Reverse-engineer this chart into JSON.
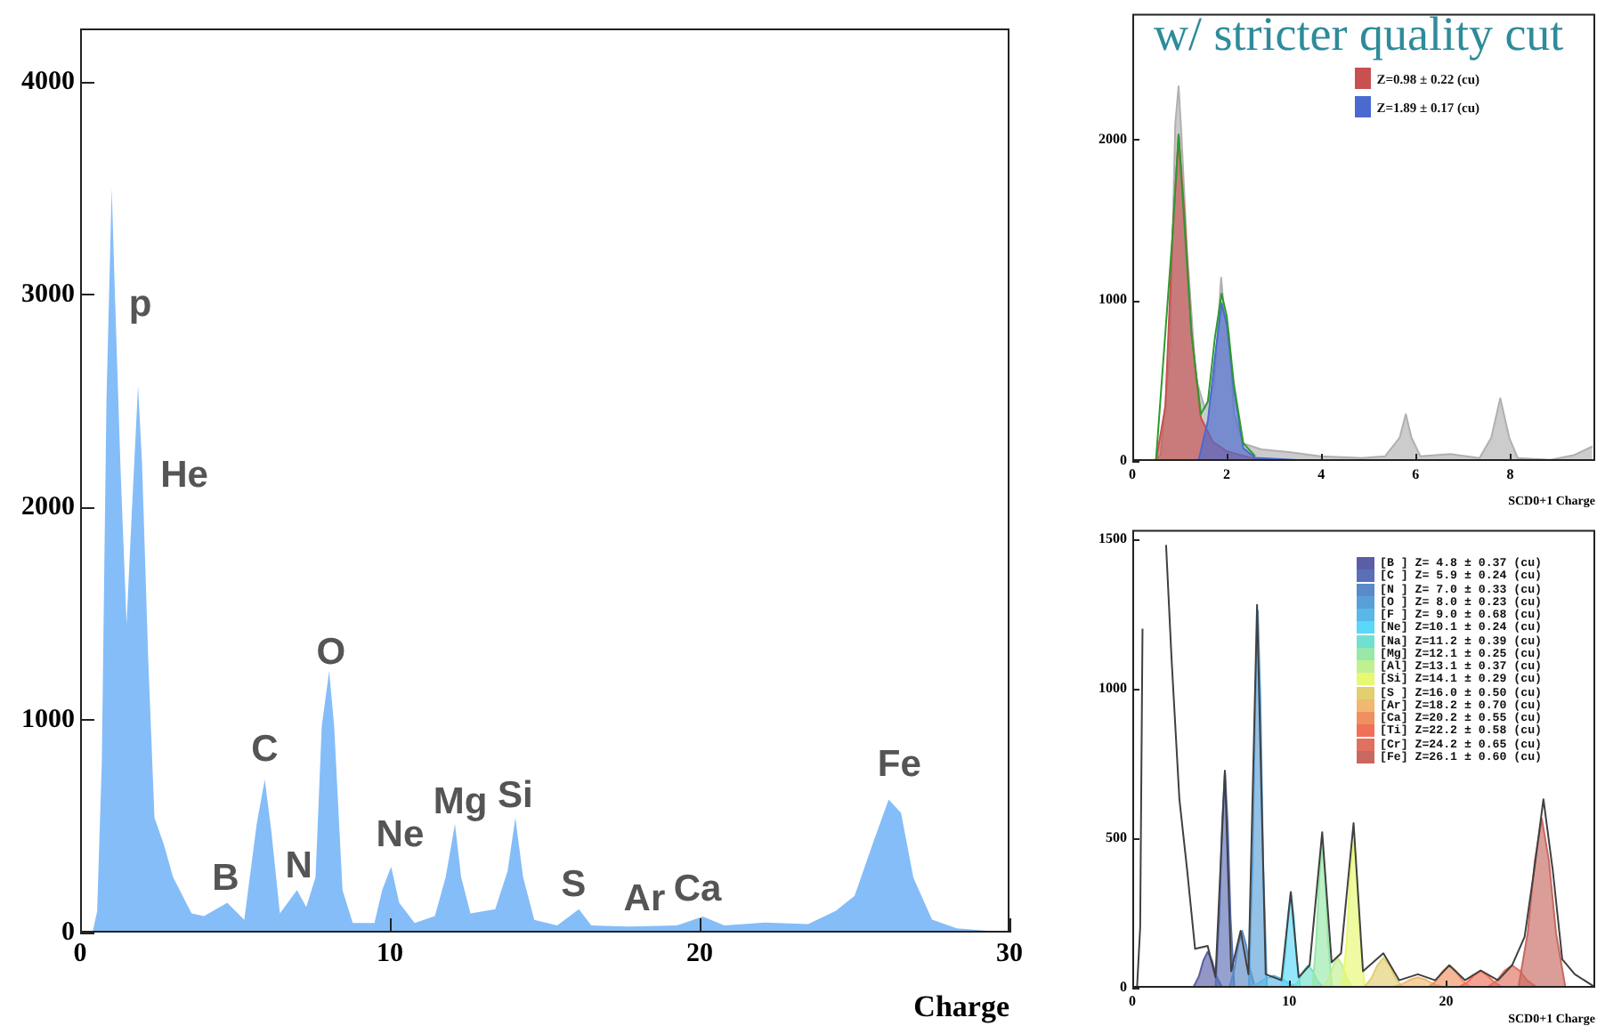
{
  "chart_data": [
    {
      "type": "area",
      "xlabel": "Charge",
      "xlim": [
        0,
        30
      ],
      "ylim": [
        0,
        4250
      ],
      "xticks": [
        0,
        10,
        20,
        30
      ],
      "yticks": [
        0,
        1000,
        2000,
        3000,
        4000
      ],
      "grid": false,
      "legend": false,
      "series": [
        {
          "color": "#85bdf8",
          "x": [
            0,
            0.4,
            0.55,
            0.7,
            0.85,
            1.02,
            1.13,
            1.3,
            1.5,
            1.66,
            1.87,
            2.0,
            2.2,
            2.4,
            2.7,
            3.0,
            3.6,
            4.0,
            4.75,
            5.3,
            5.7,
            5.96,
            6.17,
            6.45,
            7.0,
            7.3,
            7.6,
            7.8,
            8.04,
            8.2,
            8.47,
            8.8,
            9.5,
            9.75,
            10.04,
            10.3,
            10.8,
            11.45,
            11.8,
            12.1,
            12.3,
            12.6,
            13.4,
            13.8,
            14.05,
            14.3,
            14.66,
            15.4,
            16.1,
            16.5,
            17.7,
            19.25,
            20.1,
            20.8,
            22.1,
            23.5,
            24.4,
            25.0,
            25.6,
            26.1,
            26.5,
            26.9,
            27.5,
            28.3,
            30
          ],
          "values": [
            0,
            0,
            100,
            800,
            2500,
            3500,
            2970,
            2200,
            1450,
            1950,
            2570,
            2200,
            1280,
            540,
            415,
            260,
            90,
            77,
            140,
            60,
            510,
            720,
            480,
            90,
            200,
            120,
            260,
            970,
            1230,
            970,
            200,
            45,
            45,
            200,
            310,
            140,
            45,
            77,
            260,
            510,
            260,
            90,
            110,
            290,
            540,
            260,
            60,
            33,
            110,
            33,
            28,
            33,
            75,
            33,
            47,
            40,
            103,
            173,
            424,
            625,
            563,
            257,
            61,
            20,
            0
          ]
        }
      ],
      "annotations": [
        {
          "text": "p",
          "x": 1.02,
          "y": 3500
        },
        {
          "text": "He",
          "x": 1.87,
          "y": 2570
        },
        {
          "text": "B",
          "x": 4.75,
          "y": 140
        },
        {
          "text": "C",
          "x": 5.96,
          "y": 720
        },
        {
          "text": "N",
          "x": 7.0,
          "y": 200
        },
        {
          "text": "O",
          "x": 8.04,
          "y": 1230
        },
        {
          "text": "Ne",
          "x": 10.04,
          "y": 310
        },
        {
          "text": "Mg",
          "x": 12.1,
          "y": 510
        },
        {
          "text": "Si",
          "x": 14.05,
          "y": 540
        },
        {
          "text": "S",
          "x": 16.1,
          "y": 110
        },
        {
          "text": "Ar",
          "x": 17.7,
          "y": 28
        },
        {
          "text": "Ca",
          "x": 20.1,
          "y": 75
        },
        {
          "text": "Fe",
          "x": 26.1,
          "y": 625
        }
      ]
    },
    {
      "type": "area",
      "title": "w/ stricter quality cut",
      "xlabel": "SCD0+1 Charge",
      "xlim": [
        0,
        9.8
      ],
      "ylim": [
        0,
        2780
      ],
      "xticks": [
        0,
        2,
        4,
        6,
        8
      ],
      "yticks": [
        0,
        1000,
        2000
      ],
      "grid": false,
      "legend": "top right",
      "series": [
        {
          "color": "#b0b0b0",
          "x": [
            0,
            0.48,
            0.6,
            0.79,
            0.91,
            0.98,
            1.04,
            1.16,
            1.35,
            1.54,
            1.73,
            1.88,
            1.94,
            2.04,
            2.16,
            2.35,
            2.73,
            3.35,
            3.98,
            4.85,
            5.35,
            5.66,
            5.79,
            5.91,
            6.1,
            6.73,
            7.35,
            7.6,
            7.79,
            7.98,
            8.16,
            8.85,
            9.35,
            9.74
          ],
          "values": [
            0,
            7,
            36,
            650,
            2100,
            2330,
            2025,
            1300,
            506,
            325,
            470,
            1140,
            940,
            800,
            290,
            108,
            72,
            54,
            29,
            18,
            29,
            145,
            290,
            145,
            29,
            43,
            18,
            145,
            390,
            145,
            18,
            7,
            36,
            90
          ]
        },
        {
          "name": "Z=0.98 ± 0.22 (cu)",
          "color": "#c85050",
          "x": [
            0.5,
            0.7,
            0.85,
            0.98,
            1.1,
            1.25,
            1.45,
            1.7,
            2.0,
            2.5,
            3.5
          ],
          "values": [
            0,
            340,
            1400,
            2030,
            1550,
            800,
            270,
            120,
            60,
            20,
            0
          ]
        },
        {
          "name": "Z=1.89 ± 0.17 (cu)",
          "color": "#4a6ad0",
          "x": [
            1.4,
            1.6,
            1.75,
            1.89,
            2.0,
            2.15,
            2.35,
            2.6,
            3.5,
            5.0
          ],
          "values": [
            0,
            250,
            650,
            980,
            850,
            450,
            80,
            20,
            5,
            0
          ]
        },
        {
          "type": "line",
          "color": "#2e9a2e",
          "x": [
            0.5,
            0.85,
            0.98,
            1.25,
            1.45,
            1.6,
            1.75,
            1.89,
            2.0,
            2.15,
            2.35,
            2.6
          ],
          "values": [
            0,
            1400,
            2030,
            800,
            290,
            370,
            770,
            1040,
            900,
            480,
            110,
            30
          ]
        }
      ]
    },
    {
      "type": "area",
      "xlabel": "SCD0+1 Charge",
      "xlim": [
        0,
        29.5
      ],
      "ylim": [
        0,
        1530
      ],
      "xticks": [
        0,
        10,
        20
      ],
      "yticks": [
        0,
        500,
        1000,
        1500
      ],
      "grid": false,
      "legend": "top right",
      "series": [
        {
          "name": "[B ] Z= 4.8 ± 0.37 (cu)",
          "color": "#5b5ea6",
          "x": [
            3.88,
            4.25,
            4.52,
            4.8,
            5.08,
            5.35,
            5.73
          ],
          "values": [
            0,
            39,
            90,
            120,
            90,
            39,
            0
          ]
        },
        {
          "name": "[C ] Z= 5.9 ± 0.24 (cu)",
          "color": "#5a6fb8",
          "x": [
            5.3,
            5.54,
            5.72,
            5.9,
            6.08,
            6.26,
            6.5
          ],
          "values": [
            0,
            235,
            545,
            725,
            545,
            235,
            0
          ]
        },
        {
          "name": "[N ] Z= 7.0 ± 0.33 (cu)",
          "color": "#5a8ac8",
          "x": [
            6.18,
            6.5,
            6.75,
            7.0,
            7.25,
            7.5,
            7.82
          ],
          "values": [
            0,
            62,
            143,
            190,
            143,
            62,
            0
          ]
        },
        {
          "name": "[O ] Z= 8.0 ± 0.23 (cu)",
          "color": "#5aa0d8",
          "x": [
            7.42,
            7.66,
            7.83,
            8.0,
            8.17,
            8.34,
            8.58
          ],
          "values": [
            0,
            410,
            945,
            1260,
            945,
            410,
            0
          ]
        },
        {
          "name": "[F ] Z= 9.0 ± 0.68 (cu)",
          "color": "#5ab8e8",
          "x": [
            7.3,
            7.98,
            8.49,
            9.0,
            9.51,
            10.02,
            10.7
          ],
          "values": [
            0,
            13,
            30,
            40,
            30,
            13,
            0
          ]
        },
        {
          "name": "[Ne] Z=10.1 ± 0.24 (cu)",
          "color": "#5ad8f8",
          "x": [
            9.5,
            9.74,
            9.92,
            10.1,
            10.28,
            10.46,
            10.7
          ],
          "values": [
            0,
            104,
            240,
            320,
            240,
            104,
            0
          ]
        },
        {
          "name": "[Na] Z=11.2 ± 0.39 (cu)",
          "color": "#70e0d0",
          "x": [
            10.22,
            10.62,
            10.91,
            11.2,
            11.49,
            11.78,
            12.18
          ],
          "values": [
            0,
            24,
            56,
            75,
            56,
            24,
            0
          ]
        },
        {
          "name": "[Mg] Z=12.1 ± 0.25 (cu)",
          "color": "#98e8a8",
          "x": [
            11.48,
            11.72,
            11.91,
            12.1,
            12.29,
            12.48,
            12.72
          ],
          "values": [
            0,
            156,
            360,
            480,
            360,
            156,
            0
          ]
        },
        {
          "name": "[Al] Z=13.1 ± 0.37 (cu)",
          "color": "#c0f090",
          "x": [
            12.18,
            12.55,
            12.82,
            13.1,
            13.38,
            13.65,
            14.02
          ],
          "values": [
            0,
            33,
            75,
            100,
            75,
            33,
            0
          ]
        },
        {
          "name": "[Si] Z=14.1 ± 0.29 (cu)",
          "color": "#e8f870",
          "x": [
            13.38,
            13.67,
            13.88,
            14.1,
            14.32,
            14.53,
            14.82
          ],
          "values": [
            0,
            159,
            368,
            490,
            368,
            159,
            0
          ]
        },
        {
          "name": "[S ] Z=16.0 ± 0.50 (cu)",
          "color": "#e0d070",
          "x": [
            14.75,
            15.25,
            15.62,
            16.0,
            16.38,
            16.75,
            17.25
          ],
          "values": [
            0,
            33,
            75,
            100,
            75,
            33,
            0
          ]
        },
        {
          "name": "[Ar] Z=18.2 ± 0.70 (cu)",
          "color": "#f0b870",
          "x": [
            16.45,
            17.15,
            17.67,
            18.2,
            18.73,
            19.25,
            19.95
          ],
          "values": [
            0,
            11,
            26,
            35,
            26,
            11,
            0
          ]
        },
        {
          "name": "[Ca] Z=20.2 ± 0.55 (cu)",
          "color": "#f09060",
          "x": [
            18.82,
            19.38,
            19.79,
            20.2,
            20.61,
            21.02,
            21.58
          ],
          "values": [
            0,
            24,
            56,
            75,
            56,
            24,
            0
          ]
        },
        {
          "name": "[Ti] Z=22.2 ± 0.58 (cu)",
          "color": "#f07058",
          "x": [
            20.75,
            21.33,
            21.77,
            22.2,
            22.63,
            23.07,
            23.65
          ],
          "values": [
            0,
            18,
            41,
            55,
            41,
            18,
            0
          ]
        },
        {
          "name": "[Cr] Z=24.2 ± 0.65 (cu)",
          "color": "#e07060",
          "x": [
            22.58,
            23.23,
            23.71,
            24.2,
            24.69,
            25.17,
            25.82
          ],
          "values": [
            0,
            24,
            56,
            75,
            56,
            24,
            0
          ]
        },
        {
          "name": "[Fe] Z=26.1 ± 0.60 (cu)",
          "color": "#c86860",
          "x": [
            24.6,
            25.2,
            25.65,
            26.1,
            26.55,
            27.0,
            27.6
          ],
          "values": [
            0,
            184,
            424,
            565,
            424,
            184,
            0
          ]
        },
        {
          "type": "line",
          "color": "#404040",
          "x": [
            0.3,
            0.5,
            0.65,
            0.75,
            2.15,
            2.5,
            3.0,
            3.5,
            4.0,
            4.8,
            5.3,
            5.9,
            6.3,
            6.9,
            7.4,
            7.95,
            8.5,
            9.5,
            10.1,
            10.6,
            11.3,
            12.1,
            12.7,
            13.3,
            14.1,
            14.7,
            16.0,
            17.0,
            18.2,
            19.3,
            20.2,
            21.2,
            22.2,
            23.3,
            24.2,
            25.0,
            25.6,
            26.2,
            26.8,
            27.4,
            28.2,
            29.4
          ],
          "values": [
            0,
            200,
            1200,
            null,
            1480,
            1100,
            630,
            390,
            130,
            140,
            35,
            725,
            55,
            190,
            45,
            1280,
            45,
            25,
            320,
            35,
            75,
            520,
            85,
            115,
            550,
            55,
            115,
            25,
            45,
            25,
            75,
            25,
            58,
            25,
            75,
            170,
            390,
            630,
            390,
            95,
            45,
            5
          ]
        }
      ]
    }
  ]
}
